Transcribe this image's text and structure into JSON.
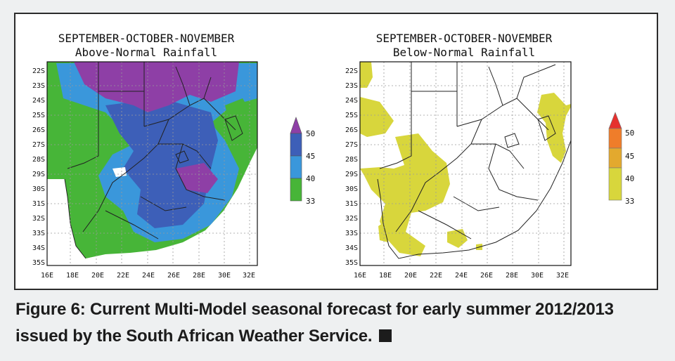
{
  "figure": {
    "panels": [
      {
        "title_line1": "SEPTEMBER-OCTOBER-NOVEMBER",
        "title_line2": "Above-Normal Rainfall",
        "legend": {
          "ticks": [
            "50",
            "45",
            "40",
            "33"
          ],
          "colors": [
            "#8e3fa6",
            "#3d5fb8",
            "#3a97db",
            "#47b538"
          ]
        }
      },
      {
        "title_line1": "SEPTEMBER-OCTOBER-NOVEMBER",
        "title_line2": "Below-Normal Rainfall",
        "legend": {
          "ticks": [
            "50",
            "45",
            "40",
            "33"
          ],
          "colors": [
            "#e6312e",
            "#ef7d2a",
            "#e3a92e",
            "#d8d63c"
          ]
        }
      }
    ],
    "lat_labels": [
      "22S",
      "23S",
      "24S",
      "25S",
      "26S",
      "27S",
      "28S",
      "29S",
      "30S",
      "31S",
      "32S",
      "33S",
      "34S",
      "35S"
    ],
    "lon_labels": [
      "16E",
      "18E",
      "20E",
      "22E",
      "24E",
      "26E",
      "28E",
      "30E",
      "32E"
    ]
  },
  "caption": {
    "line1": "Figure 6: Current Multi-Model seasonal forecast for early summer 2012/2013",
    "line2": "issued by the South African Weather Service."
  }
}
